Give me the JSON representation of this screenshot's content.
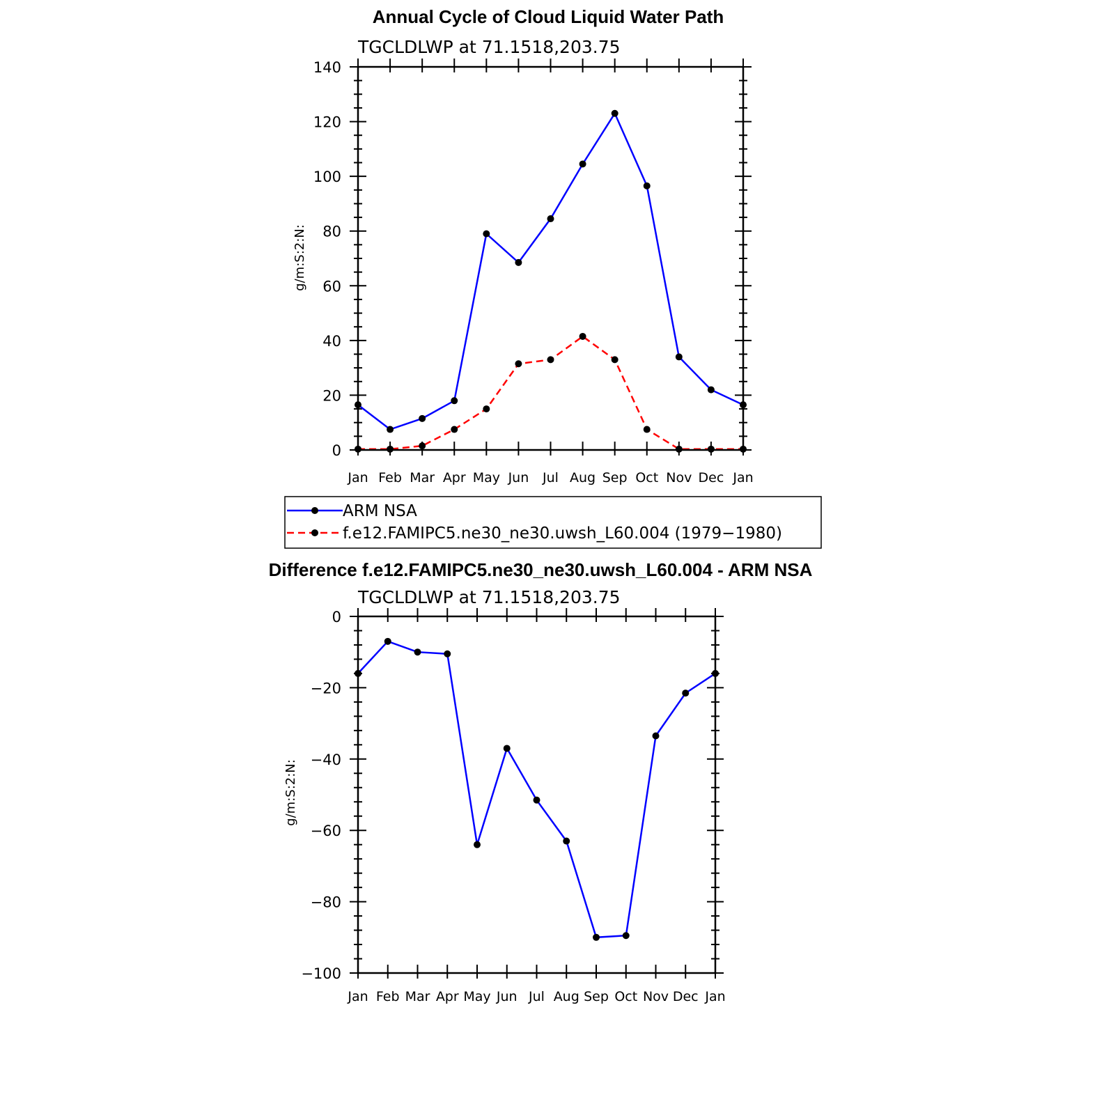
{
  "chart_data": [
    {
      "type": "line",
      "title": "Annual Cycle of Cloud Liquid Water Path",
      "subtitle": "TGCLDLWP  at  71.1518,203.75",
      "xlabel": "",
      "ylabel": "g/m:S:2:N:",
      "categories": [
        "Jan",
        "Feb",
        "Mar",
        "Apr",
        "May",
        "Jun",
        "Jul",
        "Aug",
        "Sep",
        "Oct",
        "Nov",
        "Dec",
        "Jan"
      ],
      "ylim": [
        0,
        140
      ],
      "yticks": [
        0,
        20,
        40,
        60,
        80,
        100,
        120,
        140
      ],
      "ytick_labels": [
        "0",
        "20",
        "40",
        "60",
        "80",
        "100",
        "120",
        "140"
      ],
      "series": [
        {
          "name": "ARM  NSA",
          "color": "#0000ff",
          "dash": "solid",
          "values": [
            16.5,
            7.5,
            11.5,
            18,
            79,
            68.5,
            84.5,
            104.5,
            123,
            96.5,
            34,
            22,
            16.5
          ]
        },
        {
          "name": "f.e12.FAMIPC5.ne30_ne30.uwsh_L60.004  (1979−1980)",
          "color": "#ff0000",
          "dash": "dashed",
          "values": [
            0.3,
            0.3,
            1.5,
            7.5,
            15,
            31.5,
            33,
            41.5,
            33,
            7.5,
            0.3,
            0.3,
            0.3
          ]
        }
      ]
    },
    {
      "type": "line",
      "title": "Difference f.e12.FAMIPC5.ne30_ne30.uwsh_L60.004 - ARM NSA",
      "subtitle": "TGCLDLWP  at  71.1518,203.75",
      "xlabel": "",
      "ylabel": "g/m:S:2:N:",
      "categories": [
        "Jan",
        "Feb",
        "Mar",
        "Apr",
        "May",
        "Jun",
        "Jul",
        "Aug",
        "Sep",
        "Oct",
        "Nov",
        "Dec",
        "Jan"
      ],
      "ylim": [
        -100,
        0
      ],
      "yticks": [
        -100,
        -80,
        -60,
        -40,
        -20,
        0
      ],
      "ytick_labels": [
        "−100",
        "−80",
        "−60",
        "−40",
        "−20",
        "0"
      ],
      "series": [
        {
          "name": "Difference",
          "color": "#0000ff",
          "dash": "solid",
          "values": [
            -16,
            -7,
            -10,
            -10.5,
            -64,
            -37,
            -51.5,
            -63,
            -90,
            -89.5,
            -33.5,
            -21.5,
            -16
          ]
        }
      ]
    }
  ]
}
